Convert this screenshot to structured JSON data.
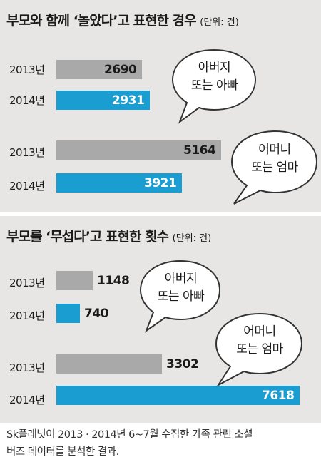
{
  "colors": {
    "y2013": "#a9a9a9",
    "y2014": "#1a9dd1",
    "background": "#e7e6e5"
  },
  "chart_data": [
    {
      "type": "bar",
      "title": "부모와 함께 ‘놀았다’고 표현한 경우",
      "unit": "(단위: 건)",
      "xlim": [
        0,
        7618
      ],
      "groups": [
        {
          "label": "아버지 또는 아빠",
          "label_lines": [
            "아버지",
            "또는 아빠"
          ],
          "bars": [
            {
              "category": "2013년",
              "value": 2690
            },
            {
              "category": "2014년",
              "value": 2931
            }
          ]
        },
        {
          "label": "어머니 또는 엄마",
          "label_lines": [
            "어머니",
            "또는 엄마"
          ],
          "bars": [
            {
              "category": "2013년",
              "value": 5164
            },
            {
              "category": "2014년",
              "value": 3921
            }
          ]
        }
      ]
    },
    {
      "type": "bar",
      "title": "부모를 ‘무섭다’고 표현한 횟수",
      "unit": "(단위: 건)",
      "xlim": [
        0,
        7618
      ],
      "groups": [
        {
          "label": "아버지 또는 아빠",
          "label_lines": [
            "아버지",
            "또는 아빠"
          ],
          "bars": [
            {
              "category": "2013년",
              "value": 1148
            },
            {
              "category": "2014년",
              "value": 740
            }
          ]
        },
        {
          "label": "어머니 또는 엄마",
          "label_lines": [
            "어머니",
            "또는 엄마"
          ],
          "bars": [
            {
              "category": "2013년",
              "value": 3302
            },
            {
              "category": "2014년",
              "value": 7618
            }
          ]
        }
      ]
    }
  ],
  "footnote": [
    "Sk플래닛이 2013 · 2014년 6~7월 수집한 가족 관련 소셜",
    "버즈 데이터를 분석한 결과."
  ]
}
